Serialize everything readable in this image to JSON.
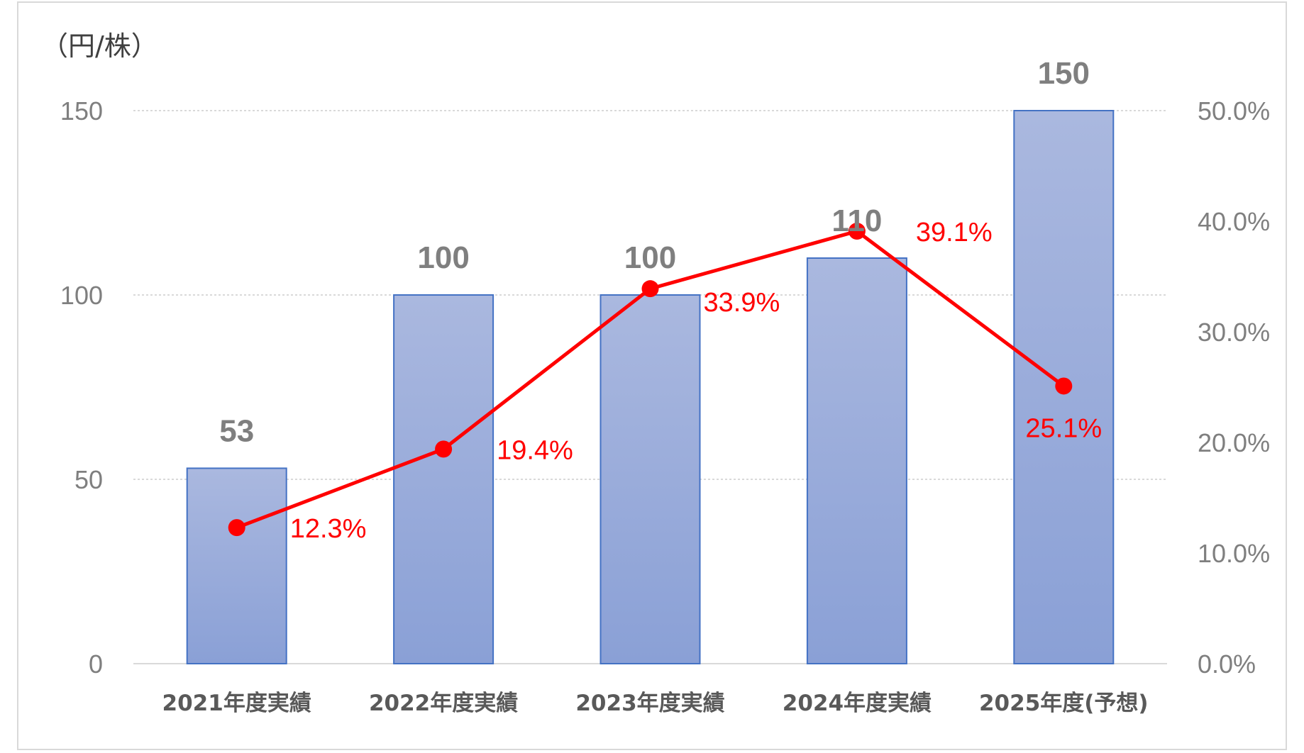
{
  "chart_data": {
    "type": "bar",
    "y_unit_label": "（円/株）",
    "categories": [
      "2021年度実績",
      "2022年度実績",
      "2023年度実績",
      "2024年度実績",
      "2025年度(予想)"
    ],
    "series": [
      {
        "type": "bar",
        "axis": "left",
        "values": [
          53,
          100,
          100,
          110,
          150
        ],
        "data_labels": [
          "53",
          "100",
          "100",
          "110",
          "150"
        ],
        "color": "#8fa3d6",
        "border_color": "#4472c4"
      },
      {
        "type": "line",
        "axis": "right",
        "values": [
          12.3,
          19.4,
          33.9,
          39.1,
          25.1
        ],
        "data_labels": [
          "12.3%",
          "19.4%",
          "33.9%",
          "39.1%",
          "25.1%"
        ],
        "color": "#ff0000"
      }
    ],
    "y_left": {
      "min": 0,
      "max": 150,
      "ticks": [
        "0",
        "50",
        "100",
        "150"
      ],
      "tick_values": [
        0,
        50,
        100,
        150
      ]
    },
    "y_right": {
      "min": 0,
      "max": 50,
      "ticks": [
        "0.0%",
        "10.0%",
        "20.0%",
        "30.0%",
        "40.0%",
        "50.0%"
      ],
      "tick_values": [
        0,
        10,
        20,
        30,
        40,
        50
      ]
    },
    "grid": true,
    "legend": "none"
  }
}
